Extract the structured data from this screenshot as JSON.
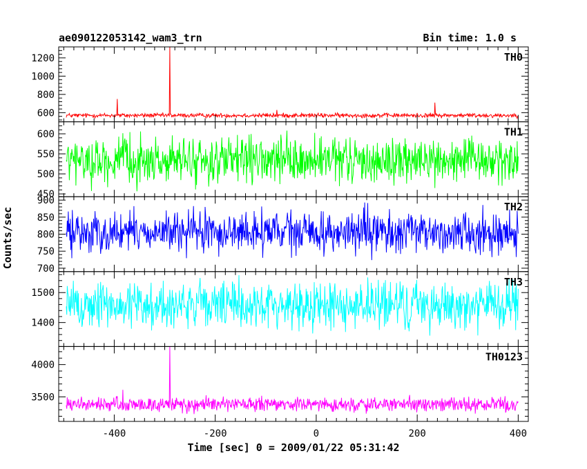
{
  "header": {
    "title": "ae090122053142_wam3_trn",
    "bin_time": "Bin time: 1.0 s"
  },
  "chart_data": {
    "type": "line",
    "title": "ae090122053142_wam3_trn",
    "subtitle": "Bin time: 1.0 s",
    "xlabel": "Time [sec] 0 = 2009/01/22 05:31:42",
    "ylabel": "Counts/sec",
    "xlim": [
      -510,
      420
    ],
    "xticks": [
      -400,
      -200,
      0,
      200,
      400
    ],
    "x_range": [
      -495,
      400
    ],
    "panels": [
      {
        "name": "TH0",
        "color": "#ff0000",
        "ylim": [
          500,
          1320
        ],
        "yticks": [
          600,
          800,
          1000,
          1200
        ],
        "mean": 570,
        "noise": 12,
        "spikes": [
          {
            "x": -394,
            "y": 750
          },
          {
            "x": -290,
            "y": 1320
          },
          {
            "x": -78,
            "y": 630
          },
          {
            "x": 235,
            "y": 710
          }
        ]
      },
      {
        "name": "TH1",
        "color": "#00ff00",
        "ylim": [
          443,
          630
        ],
        "yticks": [
          450,
          500,
          550,
          600
        ],
        "mean": 532,
        "noise": 28,
        "spikes": []
      },
      {
        "name": "TH2",
        "color": "#0000ff",
        "ylim": [
          690,
          910
        ],
        "yticks": [
          700,
          750,
          800,
          850,
          900
        ],
        "mean": 805,
        "noise": 30,
        "spikes": []
      },
      {
        "name": "TH3",
        "color": "#00ffff",
        "ylim": [
          1320,
          1570
        ],
        "yticks": [
          1400,
          1500
        ],
        "mean": 1458,
        "noise": 40,
        "spikes": []
      },
      {
        "name": "TH0123",
        "color": "#ff00ff",
        "ylim": [
          3120,
          4280
        ],
        "yticks": [
          3500,
          4000
        ],
        "mean": 3380,
        "noise": 55,
        "spikes": [
          {
            "x": -290,
            "y": 4280
          },
          {
            "x": -383,
            "y": 3610
          }
        ]
      }
    ]
  }
}
